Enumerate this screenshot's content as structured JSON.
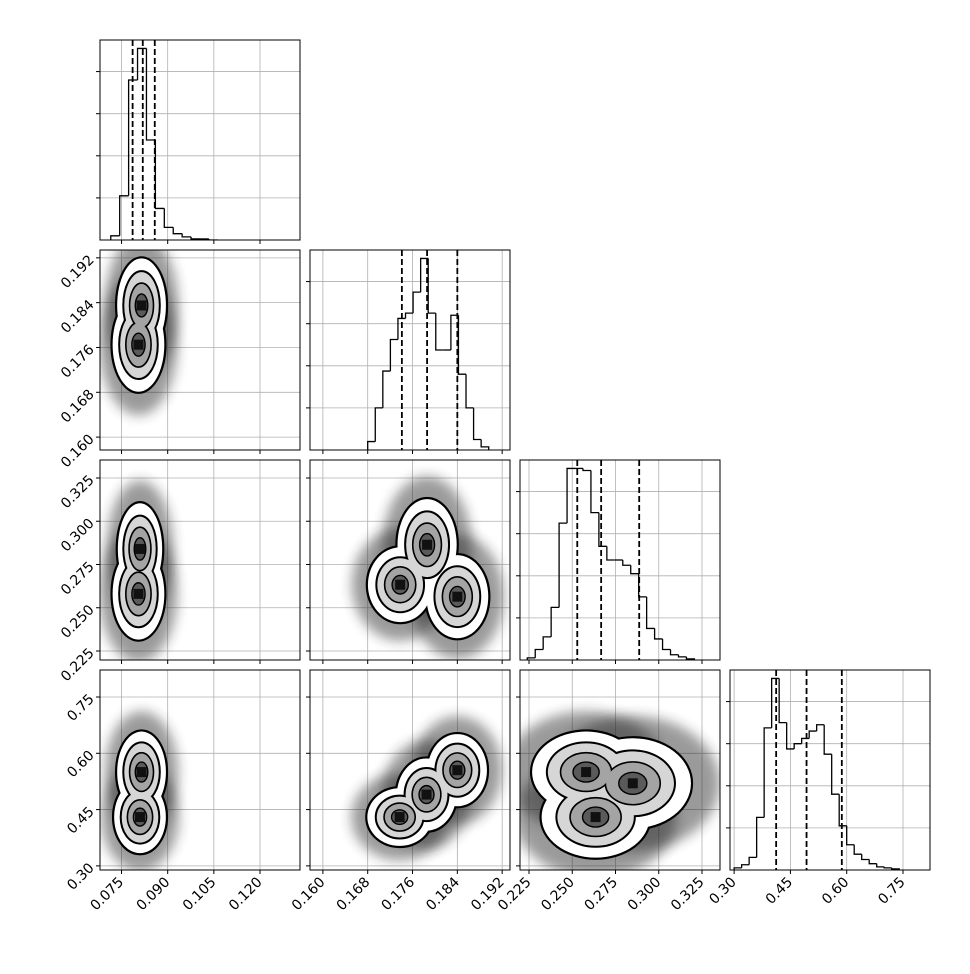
{
  "chart_data": [
    {
      "type": "histogram",
      "xlim": [
        0.068,
        0.133
      ],
      "xticks": [
        0.075,
        {
          "value": 0.09,
          "label": "0.090"
        },
        0.105,
        {
          "value": 0.12,
          "label": "0.120"
        }
      ],
      "ylim": [
        0,
        190
      ],
      "yticks": [
        40,
        80,
        120,
        160
      ],
      "grid": true,
      "bins": [
        0.0715,
        0.0744,
        0.0773,
        0.0802,
        0.0831,
        0.086,
        0.0889,
        0.0918,
        0.0947,
        0.0976,
        0.1005,
        0.1034,
        0.1063
      ],
      "values": [
        4,
        42,
        152,
        182,
        95,
        30,
        12,
        6,
        3,
        1,
        1,
        0
      ],
      "quantiles": [
        0.0786,
        0.0819,
        0.0858
      ],
      "color": "#000000"
    },
    {
      "type": "hist2d",
      "xlim": [
        0.068,
        0.133
      ],
      "xticks": [
        0.075,
        {
          "value": 0.09,
          "label": "0.090"
        },
        0.105,
        {
          "value": 0.12,
          "label": "0.120"
        }
      ],
      "ylim": [
        0.1577,
        0.1934
      ],
      "yticks": [
        {
          "value": 0.16,
          "label": "0.160"
        },
        0.168,
        0.176,
        0.184,
        0.192
      ],
      "grid": true,
      "x": [
        0.0815,
        0.0805
      ],
      "y": [
        0.1835,
        0.1765
      ],
      "x_spread": [
        0.0033,
        0.0035
      ],
      "y_spread": [
        0.0035,
        0.0035
      ]
    },
    {
      "type": "histogram",
      "xlim": [
        0.1577,
        0.1934
      ],
      "xticks": [
        {
          "value": 0.16,
          "label": "0.160"
        },
        0.168,
        0.176,
        0.184,
        0.192
      ],
      "ylim": [
        0,
        190
      ],
      "yticks": [
        40,
        80,
        120,
        160
      ],
      "grid": true,
      "bins": [
        0.168,
        0.16935,
        0.1707,
        0.17205,
        0.1734,
        0.17475,
        0.1761,
        0.17745,
        0.1788,
        0.18015,
        0.1815,
        0.18285,
        0.1842,
        0.18555,
        0.1869,
        0.18825,
        0.1896
      ],
      "values": [
        8,
        40,
        75,
        105,
        125,
        130,
        150,
        182,
        130,
        95,
        95,
        128,
        72,
        40,
        10,
        3
      ],
      "quantiles": [
        0.1741,
        0.1786,
        0.184
      ],
      "color": "#000000"
    },
    {
      "type": "hist2d",
      "xlim": [
        0.068,
        0.133
      ],
      "xticks": [
        0.075,
        {
          "value": 0.09,
          "label": "0.090"
        },
        0.105,
        {
          "value": 0.12,
          "label": "0.120"
        }
      ],
      "ylim": [
        0.2198,
        0.3354
      ],
      "yticks": [
        0.225,
        {
          "value": 0.25,
          "label": "0.250"
        },
        0.275,
        {
          "value": 0.3,
          "label": "0.300"
        },
        0.325
      ],
      "grid": true,
      "x": [
        0.0805,
        0.081
      ],
      "y": [
        0.258,
        0.284
      ],
      "x_spread": [
        0.0035,
        0.003
      ],
      "y_spread": [
        0.011,
        0.011
      ]
    },
    {
      "type": "hist2d",
      "xlim": [
        0.1577,
        0.1934
      ],
      "xticks": [
        {
          "value": 0.16,
          "label": "0.160"
        },
        0.168,
        0.176,
        0.184,
        0.192
      ],
      "ylim": [
        0.2198,
        0.3354
      ],
      "yticks": [
        0.225,
        {
          "value": 0.25,
          "label": "0.250"
        },
        0.275,
        {
          "value": 0.3,
          "label": "0.300"
        },
        0.325
      ],
      "grid": true,
      "x": [
        0.1786,
        0.1738,
        0.184
      ],
      "y": [
        0.2864,
        0.2633,
        0.2564
      ],
      "x_spread": [
        0.0022,
        0.0024,
        0.0023
      ],
      "y_spread": [
        0.011,
        0.009,
        0.01
      ]
    },
    {
      "type": "histogram",
      "xlim": [
        0.2198,
        0.3354
      ],
      "xticks": [
        0.225,
        {
          "value": 0.25,
          "label": "0.250"
        },
        0.275,
        {
          "value": 0.3,
          "label": "0.300"
        },
        0.325
      ],
      "ylim": [
        0,
        190
      ],
      "yticks": [
        40,
        80,
        120,
        160
      ],
      "grid": true,
      "bins": [
        0.224,
        0.2286,
        0.2332,
        0.2378,
        0.2424,
        0.247,
        0.2516,
        0.2562,
        0.2608,
        0.2654,
        0.27,
        0.2746,
        0.2792,
        0.2838,
        0.2884,
        0.293,
        0.2976,
        0.3022,
        0.3068,
        0.3114,
        0.316,
        0.3206
      ],
      "values": [
        2,
        10,
        22,
        50,
        130,
        182,
        182,
        180,
        140,
        108,
        95,
        95,
        90,
        82,
        60,
        30,
        20,
        10,
        5,
        3,
        1
      ],
      "quantiles": [
        0.2529,
        0.2667,
        0.2887
      ],
      "color": "#000000"
    },
    {
      "type": "hist2d",
      "xlim": [
        0.068,
        0.133
      ],
      "xticks": [
        0.075,
        {
          "value": 0.09,
          "label": "0.090"
        },
        0.105,
        {
          "value": 0.12,
          "label": "0.120"
        }
      ],
      "ylim": [
        0.289,
        0.822
      ],
      "yticks": [
        {
          "value": 0.3,
          "label": "0.30"
        },
        0.45,
        {
          "value": 0.6,
          "label": "0.60"
        },
        0.75
      ],
      "grid": true,
      "x": [
        0.081,
        0.0815
      ],
      "y": [
        0.43,
        0.55
      ],
      "x_spread": [
        0.0035,
        0.0033
      ],
      "y_spread": [
        0.04,
        0.045
      ]
    },
    {
      "type": "hist2d",
      "xlim": [
        0.1577,
        0.1934
      ],
      "xticks": [
        {
          "value": 0.16,
          "label": "0.160"
        },
        0.168,
        0.176,
        0.184,
        0.192
      ],
      "ylim": [
        0.289,
        0.822
      ],
      "yticks": [
        {
          "value": 0.3,
          "label": "0.30"
        },
        0.45,
        {
          "value": 0.6,
          "label": "0.60"
        },
        0.75
      ],
      "grid": true,
      "x": [
        0.1737,
        0.184,
        0.1785
      ],
      "y": [
        0.43,
        0.555,
        0.49
      ],
      "x_spread": [
        0.0024,
        0.0022,
        0.0022
      ],
      "y_spread": [
        0.032,
        0.04,
        0.04
      ]
    },
    {
      "type": "hist2d",
      "xlim": [
        0.2198,
        0.3354
      ],
      "xticks": [
        0.225,
        {
          "value": 0.25,
          "label": "0.250"
        },
        0.275,
        {
          "value": 0.3,
          "label": "0.300"
        },
        0.325
      ],
      "ylim": [
        0.289,
        0.822
      ],
      "yticks": [
        {
          "value": 0.3,
          "label": "0.30"
        },
        0.45,
        {
          "value": 0.6,
          "label": "0.60"
        },
        0.75
      ],
      "grid": true,
      "x": [
        0.2635,
        0.258,
        0.285
      ],
      "y": [
        0.43,
        0.55,
        0.52
      ],
      "x_spread": [
        0.013,
        0.013,
        0.014
      ],
      "y_spread": [
        0.045,
        0.045,
        0.05
      ]
    },
    {
      "type": "histogram",
      "xlim": [
        0.289,
        0.822
      ],
      "xticks": [
        {
          "value": 0.3,
          "label": "0.30"
        },
        0.45,
        {
          "value": 0.6,
          "label": "0.60"
        },
        0.75
      ],
      "ylim": [
        0,
        190
      ],
      "yticks": [
        40,
        80,
        120,
        160
      ],
      "grid": true,
      "bins": [
        0.3,
        0.32,
        0.34,
        0.36,
        0.38,
        0.4,
        0.42,
        0.44,
        0.46,
        0.48,
        0.5,
        0.52,
        0.54,
        0.56,
        0.58,
        0.6,
        0.62,
        0.64,
        0.66,
        0.68,
        0.7,
        0.72,
        0.74
      ],
      "values": [
        2,
        5,
        12,
        50,
        135,
        182,
        140,
        115,
        120,
        125,
        132,
        138,
        110,
        72,
        42,
        24,
        15,
        10,
        6,
        3,
        2,
        1
      ],
      "quantiles": [
        0.412,
        0.493,
        0.587
      ],
      "color": "#000000"
    }
  ]
}
